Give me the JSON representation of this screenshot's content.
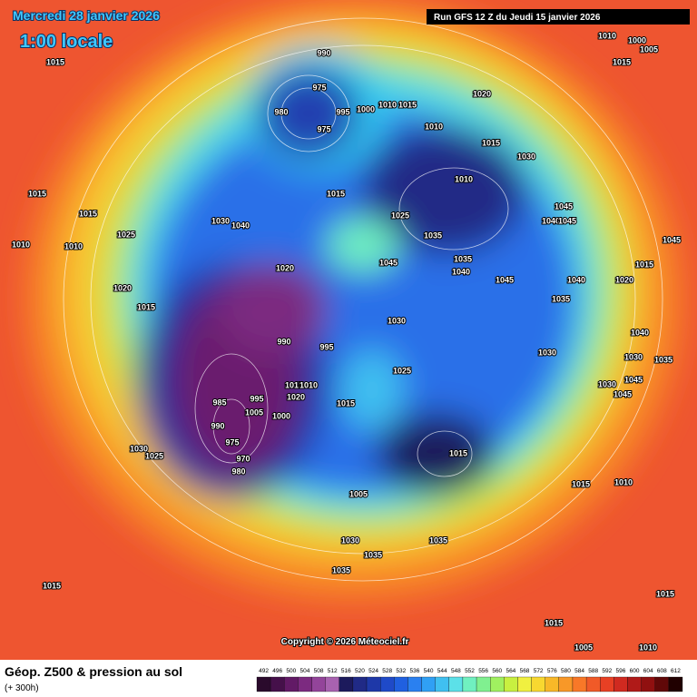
{
  "header": {
    "date": "Mercredi 28 janvier 2026",
    "time": "1:00 locale",
    "run": "Run GFS 12 Z du Jeudi 15 janvier 2026"
  },
  "footer": {
    "title": "Géop. Z500 & pression au sol",
    "lead": "(+ 300h)",
    "copyright": "Copyright © 2026 Méteociel.fr"
  },
  "colorbar": {
    "labels": [
      "492",
      "496",
      "500",
      "504",
      "508",
      "512",
      "516",
      "520",
      "524",
      "528",
      "532",
      "536",
      "540",
      "544",
      "548",
      "552",
      "556",
      "560",
      "564",
      "568",
      "572",
      "576",
      "580",
      "584",
      "588",
      "592",
      "596",
      "600",
      "604",
      "608",
      "612"
    ],
    "colors": [
      "#2a0a2c",
      "#45104a",
      "#621a66",
      "#7c2a80",
      "#93449a",
      "#a862b0",
      "#1c1a5c",
      "#202a86",
      "#1e38a8",
      "#1f4ac8",
      "#2060e0",
      "#2a80f0",
      "#30a0f4",
      "#40c0f0",
      "#5ce0e8",
      "#70f0c0",
      "#80f090",
      "#a0f060",
      "#c8f040",
      "#f0f040",
      "#f8d830",
      "#f8b828",
      "#f89828",
      "#f87828",
      "#f05a28",
      "#e84024",
      "#d02a20",
      "#b01a18",
      "#901010",
      "#600808",
      "#200000"
    ]
  },
  "map": {
    "isobar_labels": [
      "990",
      "975",
      "980",
      "975",
      "995",
      "1000",
      "1010",
      "1015",
      "1020",
      "1010",
      "1015",
      "1030",
      "1010",
      "1015",
      "1025",
      "1045",
      "1040",
      "1045",
      "1035",
      "1035",
      "1040",
      "1045",
      "1045",
      "1040",
      "1030",
      "1025",
      "1015",
      "1015",
      "1010",
      "1010",
      "1020",
      "1015",
      "1020",
      "990",
      "995",
      "1030",
      "1025",
      "1015",
      "1010",
      "1015",
      "985",
      "995",
      "1005",
      "1000",
      "1020",
      "990",
      "975",
      "970",
      "980",
      "1030",
      "1025",
      "1015",
      "1005",
      "1030",
      "1035",
      "1035",
      "1035",
      "1015",
      "1010",
      "1015",
      "1015",
      "1015",
      "1005",
      "1010",
      "1040",
      "1035",
      "1020",
      "1015",
      "1040",
      "1030",
      "1030",
      "1035",
      "1045",
      "1045",
      "1030",
      "1010",
      "1000",
      "1005",
      "1015",
      "1015",
      "1045"
    ]
  }
}
